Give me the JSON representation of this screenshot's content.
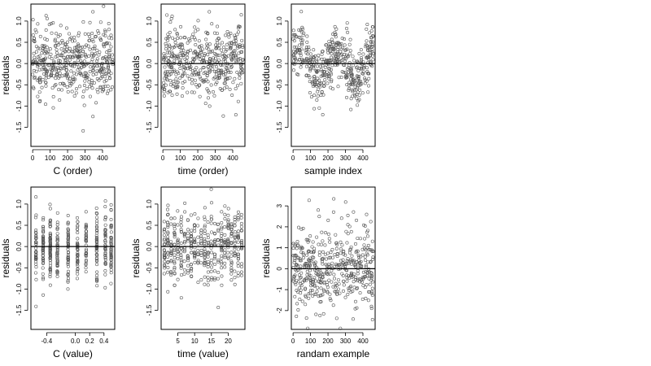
{
  "chart_data": [
    {
      "type": "scatter",
      "xlabel": "C (order)",
      "ylabel": "residuals",
      "xlim": [
        -10,
        470
      ],
      "ylim": [
        -1.95,
        1.4
      ],
      "xticks": [
        0,
        100,
        200,
        300,
        400
      ],
      "xtick_labels": [
        "0",
        "100",
        "200",
        "300",
        "400"
      ],
      "yticks": [
        -1.5,
        -1.0,
        -0.5,
        0.0,
        0.5,
        1.0
      ],
      "ytick_labels": [
        "-1.5",
        "-1.0",
        "-0.5",
        "0.0",
        "0.5",
        "1.0"
      ],
      "hline": 0,
      "series": [
        {
          "n": 460,
          "seed": 11,
          "x_kind": "order",
          "shape": "flat",
          "sd": 0.42
        }
      ]
    },
    {
      "type": "scatter",
      "xlabel": "time (order)",
      "ylabel": "residuals",
      "xlim": [
        -10,
        470
      ],
      "ylim": [
        -1.95,
        1.4
      ],
      "xticks": [
        0,
        100,
        200,
        300,
        400
      ],
      "xtick_labels": [
        "0",
        "100",
        "200",
        "300",
        "400"
      ],
      "yticks": [
        -1.5,
        -1.0,
        -0.5,
        0.0,
        0.5,
        1.0
      ],
      "ytick_labels": [
        "-1.5",
        "-1.0",
        "-0.5",
        "0.0",
        "0.5",
        "1.0"
      ],
      "hline": 0,
      "series": [
        {
          "n": 460,
          "seed": 23,
          "x_kind": "order",
          "shape": "flat",
          "sd": 0.42
        }
      ]
    },
    {
      "type": "scatter",
      "xlabel": "sample index",
      "ylabel": "residuals",
      "xlim": [
        -10,
        470
      ],
      "ylim": [
        -1.95,
        1.4
      ],
      "xticks": [
        0,
        100,
        200,
        300,
        400
      ],
      "xtick_labels": [
        "0",
        "100",
        "200",
        "300",
        "400"
      ],
      "yticks": [
        -1.5,
        -1.0,
        -0.5,
        0.0,
        0.5,
        1.0
      ],
      "ytick_labels": [
        "-1.5",
        "-1.0",
        "-0.5",
        "0.0",
        "0.5",
        "1.0"
      ],
      "hline": 0,
      "series": [
        {
          "n": 460,
          "seed": 37,
          "x_kind": "order",
          "shape": "wave",
          "sd": 0.32
        }
      ]
    },
    {
      "type": "scatter",
      "xlabel": "C (value)",
      "ylabel": "residuals",
      "xlim": [
        -0.62,
        0.55
      ],
      "ylim": [
        -1.95,
        1.4
      ],
      "xticks": [
        -0.4,
        0.0,
        0.2,
        0.4
      ],
      "xtick_labels": [
        "-0.4",
        "0.0",
        "0.2",
        "0.4"
      ],
      "yticks": [
        -1.5,
        -1.0,
        -0.5,
        0.0,
        0.5,
        1.0
      ],
      "ytick_labels": [
        "-1.5",
        "-1.0",
        "-0.5",
        "0.0",
        "0.5",
        "1.0"
      ],
      "hline": 0,
      "series": [
        {
          "n": 460,
          "seed": 41,
          "x_kind": "clusters",
          "centers": [
            -0.55,
            -0.45,
            -0.35,
            -0.25,
            -0.1,
            0.03,
            0.15,
            0.3,
            0.42,
            0.5
          ],
          "shape": "flat",
          "sd": 0.42
        }
      ]
    },
    {
      "type": "scatter",
      "xlabel": "time (value)",
      "ylabel": "residuals",
      "xlim": [
        0,
        25
      ],
      "ylim": [
        -1.95,
        1.4
      ],
      "xticks": [
        5,
        10,
        15,
        20
      ],
      "xtick_labels": [
        "5",
        "10",
        "15",
        "20"
      ],
      "yticks": [
        -1.5,
        -1.0,
        -0.5,
        0.0,
        0.5,
        1.0
      ],
      "ytick_labels": [
        "-1.5",
        "-1.0",
        "-0.5",
        "0.0",
        "0.5",
        "1.0"
      ],
      "hline": 0,
      "series": [
        {
          "n": 460,
          "seed": 53,
          "x_kind": "clusters",
          "centers": [
            1,
            2,
            3,
            4,
            5,
            6,
            7,
            8,
            9,
            10,
            11,
            12,
            13,
            14,
            15,
            16,
            17,
            18,
            19,
            20,
            21,
            22,
            23,
            24
          ],
          "shape": "flat",
          "sd": 0.42
        }
      ]
    },
    {
      "type": "scatter",
      "xlabel": "randam example",
      "ylabel": "residuals",
      "xlim": [
        -10,
        470
      ],
      "ylim": [
        -2.9,
        3.9
      ],
      "xticks": [
        0,
        100,
        200,
        300,
        400
      ],
      "xtick_labels": [
        "0",
        "100",
        "200",
        "300",
        "400"
      ],
      "yticks": [
        -2,
        -1,
        0,
        1,
        2,
        3
      ],
      "ytick_labels": [
        "-2",
        "-1",
        "0",
        "1",
        "2",
        "3"
      ],
      "hline": 0,
      "series": [
        {
          "n": 460,
          "seed": 67,
          "x_kind": "order",
          "shape": "flat",
          "sd": 1.0
        }
      ]
    }
  ]
}
